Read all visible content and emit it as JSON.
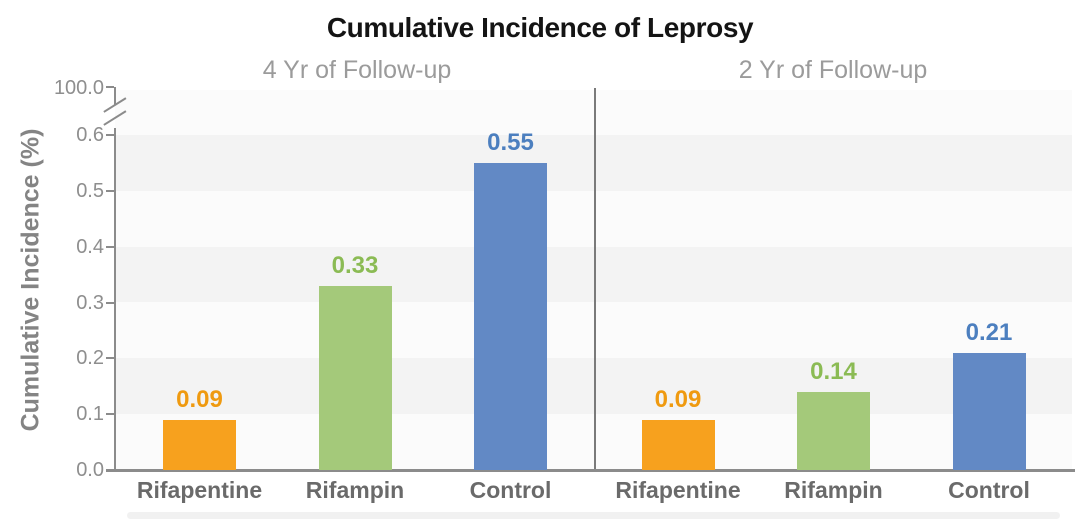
{
  "chart_data": {
    "type": "bar",
    "title": "Cumulative Incidence of Leprosy",
    "ylabel": "Cumulative Incidence (%)",
    "ylim": [
      0,
      0.6
    ],
    "axis_break": {
      "enabled": true,
      "top_tick_label": "100.0"
    },
    "yticks": [
      "0.0",
      "0.1",
      "0.2",
      "0.3",
      "0.4",
      "0.5",
      "0.6"
    ],
    "grid": "alternating horizontal bands every 0.1",
    "legend": "none",
    "categories": [
      "Rifapentine",
      "Rifampin",
      "Control"
    ],
    "panels": [
      {
        "subtitle": "4 Yr of Follow-up",
        "values": [
          0.09,
          0.33,
          0.55
        ],
        "value_labels": [
          "0.09",
          "0.33",
          "0.55"
        ]
      },
      {
        "subtitle": "2 Yr of Follow-up",
        "values": [
          0.09,
          0.14,
          0.21
        ],
        "value_labels": [
          "0.09",
          "0.14",
          "0.21"
        ]
      }
    ],
    "colors": {
      "bars": [
        "#F7A11E",
        "#A4C97A",
        "#6289C5"
      ],
      "value_labels": [
        "#EF9A10",
        "#8BBB54",
        "#4C7FBF"
      ],
      "axis": "#8B8B8B",
      "divider": "#7A7A7A",
      "tick_text": "#8E8E8E",
      "subtitle_text": "#9B9B9B",
      "category_text": "#6A6A6A",
      "title_text": "#141414",
      "stripe_gray": "#F3F3F3",
      "stripe_white": "#FBFBFB"
    }
  }
}
